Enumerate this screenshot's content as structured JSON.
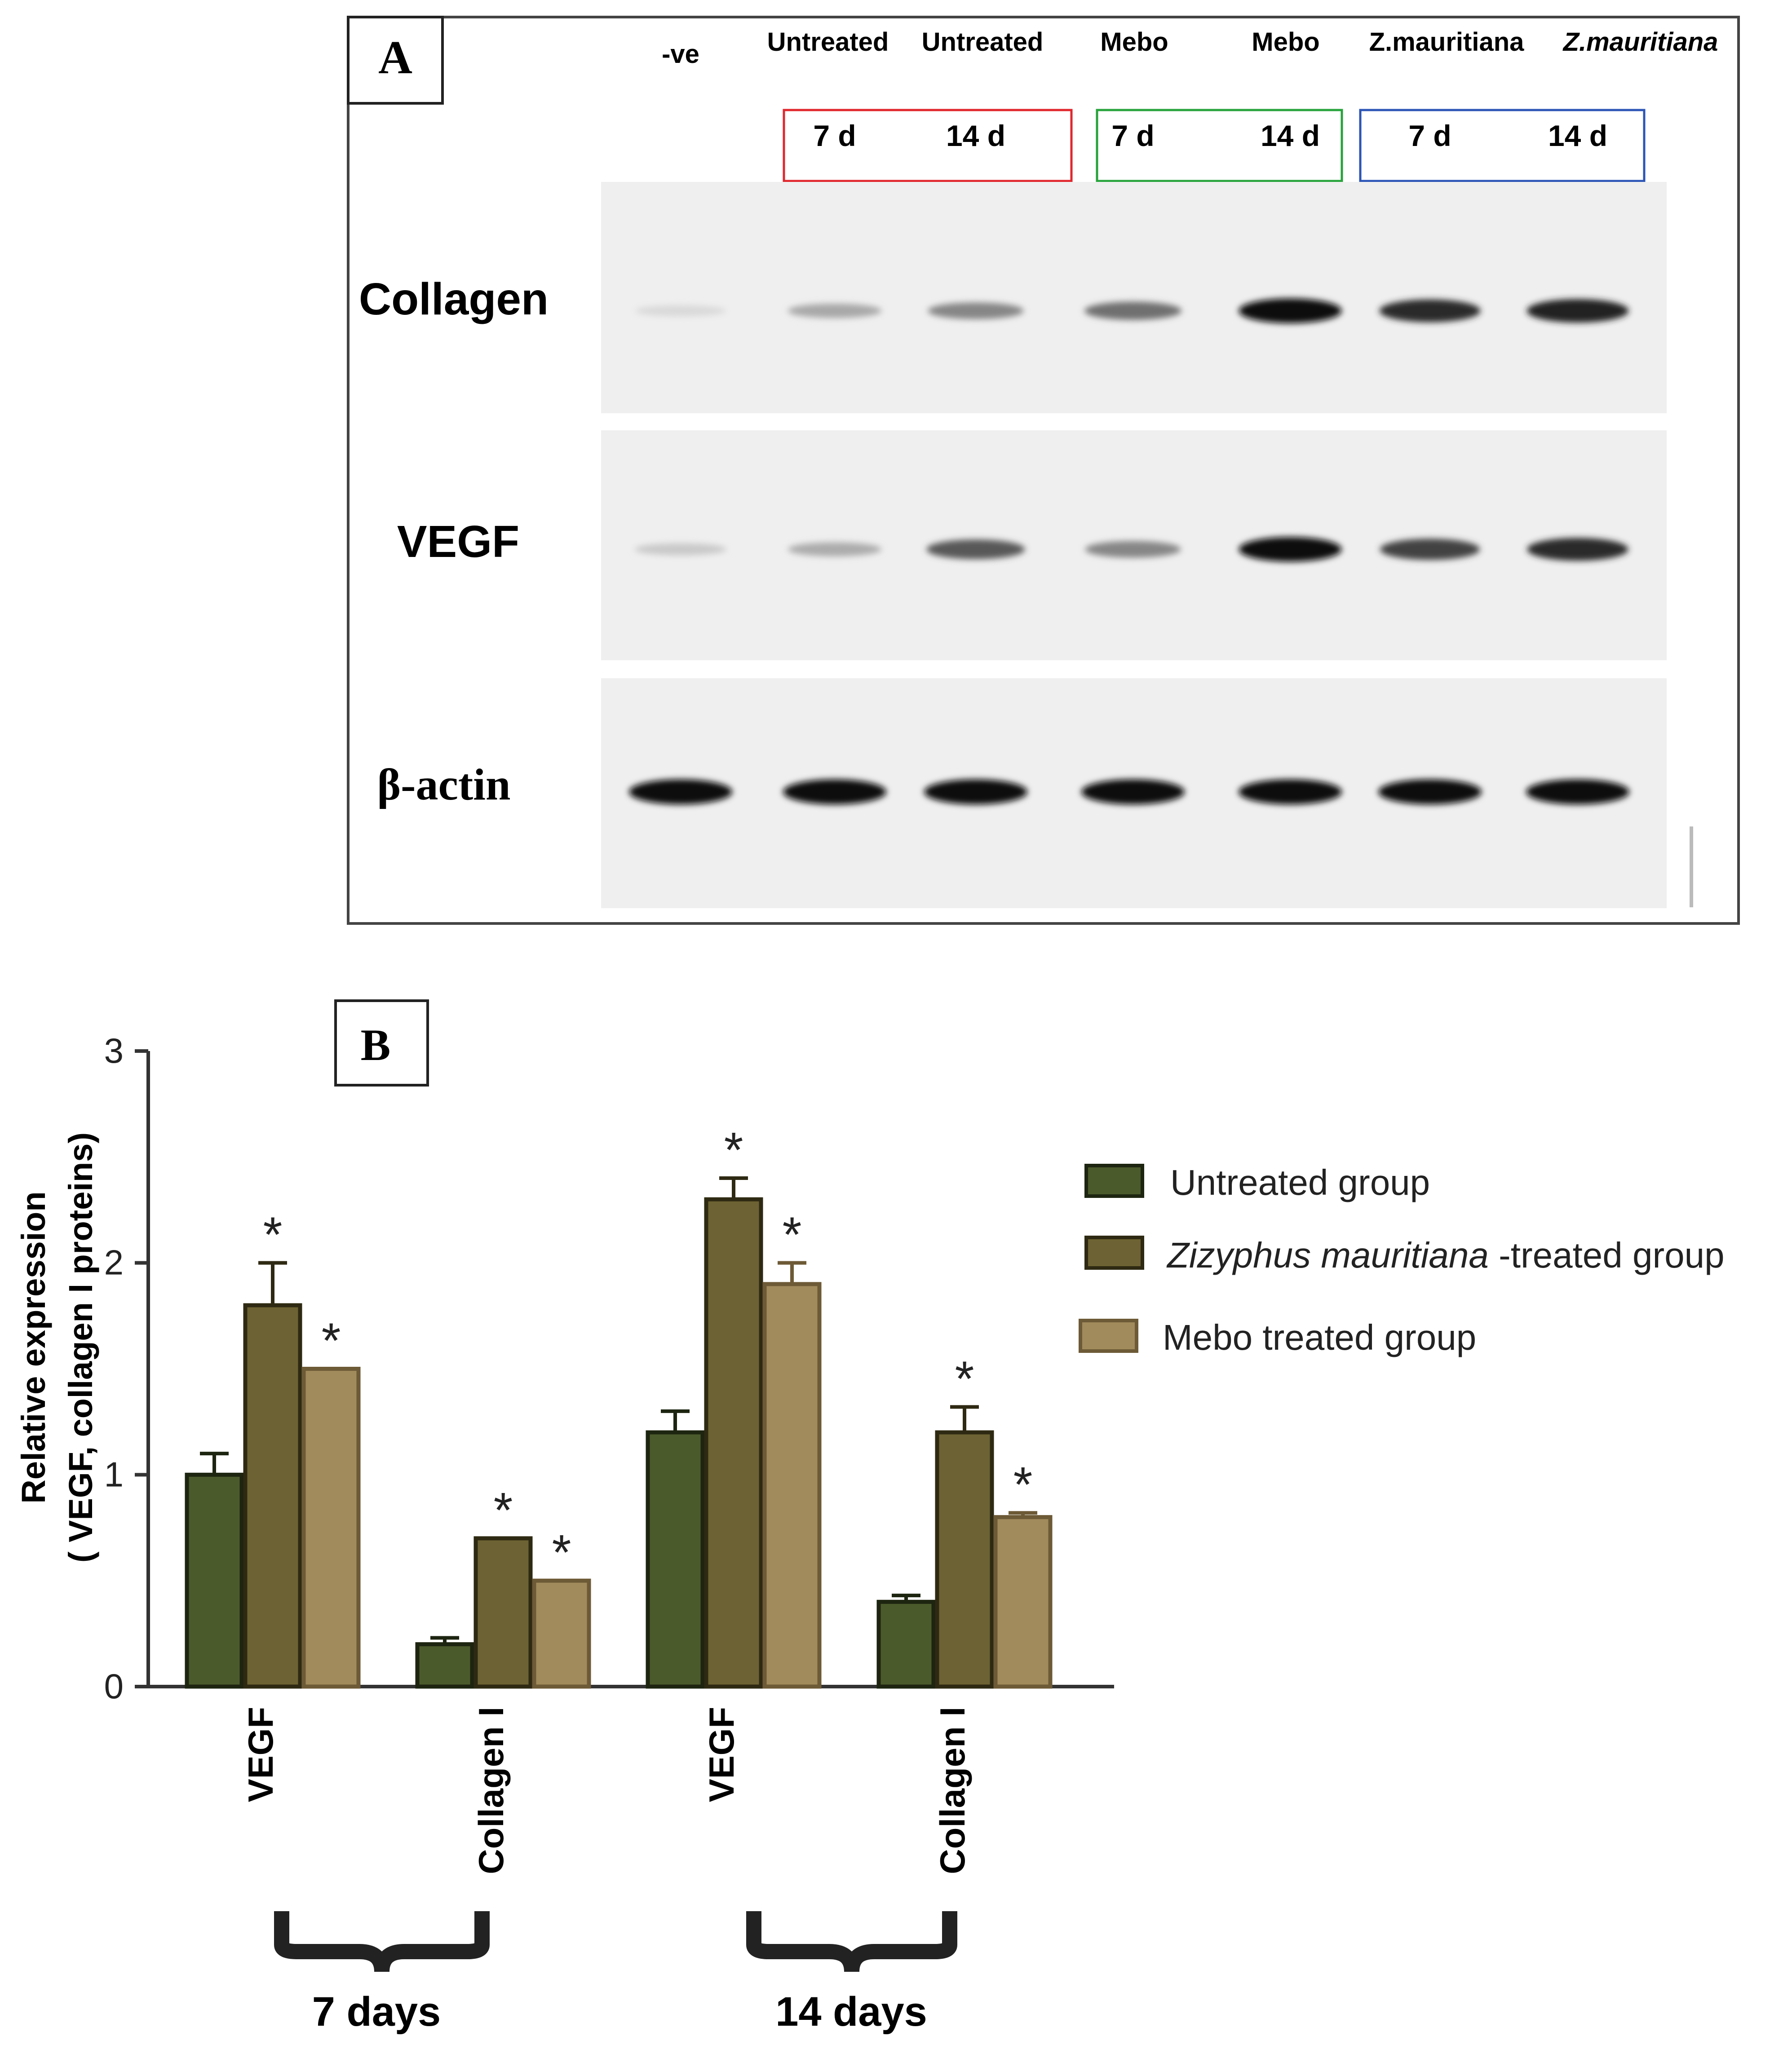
{
  "panel_a": {
    "label": "A",
    "lane_labels": [
      "-ve",
      "Untreated",
      "Untreated",
      "Mebo",
      "Mebo",
      "Z.mauritiana",
      "Z.mauritiana"
    ],
    "day_labels": [
      "7 d",
      "14 d",
      "7 d",
      "14 d",
      "7 d",
      "14 d"
    ],
    "box_colors": [
      "#e0262c",
      "#27a33b",
      "#2c55b6"
    ],
    "row_labels": [
      "Collagen",
      "VEGF",
      "β-actin"
    ],
    "band_intensity": {
      "Collagen": [
        0.08,
        0.3,
        0.45,
        0.55,
        0.98,
        0.85,
        0.9
      ],
      "VEGF": [
        0.15,
        0.28,
        0.65,
        0.45,
        0.97,
        0.75,
        0.85
      ],
      "beta_actin": [
        1,
        1,
        1,
        1,
        1,
        1,
        1
      ]
    }
  },
  "panel_b": {
    "label": "B",
    "ylabel_line1": "Relative expression",
    "ylabel_line2": "( VEGF, collagen I proteins)",
    "significance_marker": "*",
    "group_labels": [
      "7 days",
      "14 days"
    ],
    "legend": [
      {
        "label": "Untreated group"
      },
      {
        "label_italic": "Zizyphus mauritiana",
        "label_rest": " -treated group"
      },
      {
        "label": "Mebo treated group"
      }
    ]
  },
  "chart_data": {
    "type": "bar",
    "categories": [
      "VEGF",
      "Collagen I",
      "VEGF",
      "Collagen I"
    ],
    "yticks": [
      "0",
      "1",
      "2",
      "3"
    ],
    "ylim": [
      0,
      3
    ],
    "series": [
      {
        "name": "Untreated group",
        "color": "#4b5a2b",
        "values": [
          1.0,
          0.2,
          1.2,
          0.4
        ],
        "errors": [
          0.1,
          0.03,
          0.1,
          0.03
        ],
        "significant": [
          false,
          false,
          false,
          false
        ]
      },
      {
        "name": "Zizyphus mauritiana -treated group",
        "color": "#6d6233",
        "values": [
          1.8,
          0.7,
          2.3,
          1.2
        ],
        "errors": [
          0.2,
          0.0,
          0.1,
          0.12
        ],
        "significant": [
          true,
          true,
          true,
          true
        ]
      },
      {
        "name": "Mebo treated group",
        "color": "#a18b5c",
        "values": [
          1.5,
          0.5,
          1.9,
          0.8
        ],
        "errors": [
          0.0,
          0.0,
          0.1,
          0.02
        ],
        "significant": [
          true,
          true,
          true,
          true
        ]
      }
    ],
    "legend_position": "right"
  }
}
